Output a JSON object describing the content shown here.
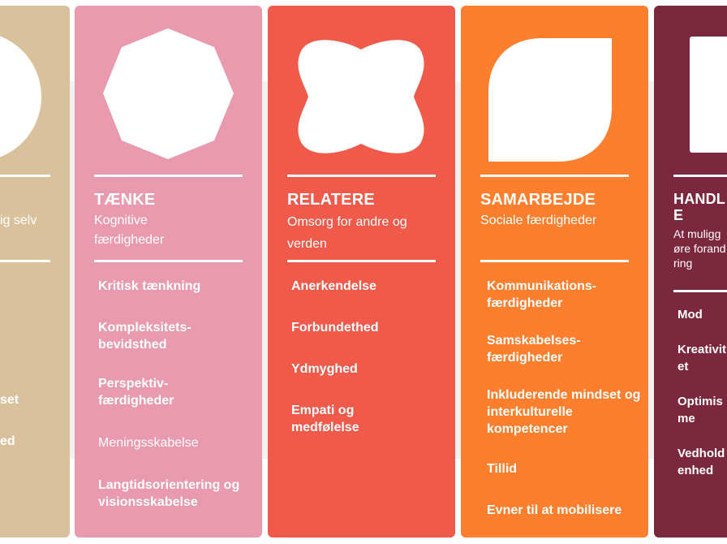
{
  "cards": [
    {
      "color": "#d9c19c",
      "shape": "circle-icon",
      "subtitle": "ig selv",
      "items": [
        "set",
        "ed"
      ]
    },
    {
      "color": "#e99aaf",
      "shape": "octagon-icon",
      "title": "TÆNKE",
      "subtitle": "Kognitive færdigheder",
      "items": [
        "Kritisk tænkning",
        "Kompleksitets-bevidsthed",
        "Perspektiv-færdigheder",
        "Meningsskabelse",
        "Langtidsorientering og visionsskabelse"
      ]
    },
    {
      "color": "#ef5a4a",
      "shape": "clover-icon",
      "title": "RELATERE",
      "subtitle": "Omsorg for andre og verden",
      "items": [
        "Anerkendelse",
        "Forbundethed",
        "Ydmyghed",
        "Empati og medfølelse"
      ]
    },
    {
      "color": "#fd7e2c",
      "shape": "leaf-icon",
      "title": "SAMARBEJDE",
      "subtitle": "Sociale færdigheder",
      "items": [
        "Kommunikations-færdigheder",
        "Samskabelses-færdigheder",
        "Inkluderende mindset og interkulturelle kompetencer",
        "Tillid",
        "Evner til at mobilisere"
      ]
    },
    {
      "color": "#7b273d",
      "shape": "square-icon",
      "title": "HANDLE",
      "subtitle": "At muliggøre forandring",
      "items": [
        "Mod",
        "Kreativitet",
        "Optimisme",
        "Vedholdenhed"
      ]
    }
  ]
}
